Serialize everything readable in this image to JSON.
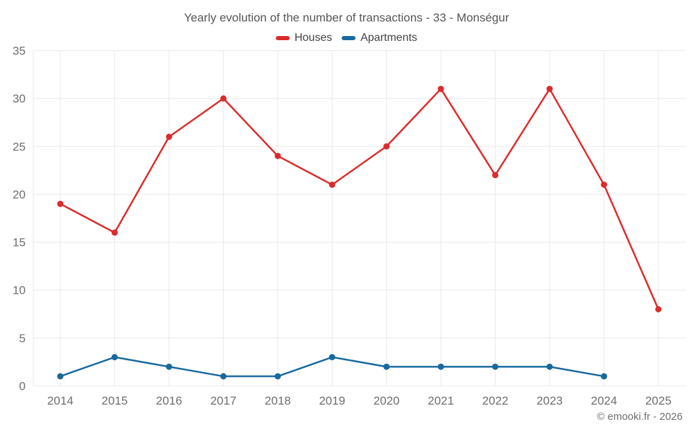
{
  "title": "Yearly evolution of the number of transactions - 33 - Monségur",
  "footer": "© emooki.fr - 2026",
  "colors": {
    "houses": "#dc2b2b",
    "apartments": "#17699e",
    "grid": "#e8e8e8",
    "tick_label": "#6e6e6e",
    "title_text": "#565656",
    "background": "#ffffff"
  },
  "chart_data": {
    "type": "line",
    "title": "Yearly evolution of the number of transactions - 33 - Monségur",
    "x": [
      "2014",
      "2015",
      "2016",
      "2017",
      "2018",
      "2019",
      "2020",
      "2021",
      "2022",
      "2023",
      "2024",
      "2025"
    ],
    "series": [
      {
        "name": "Houses",
        "color": "#dc2b2b",
        "values": [
          19,
          16,
          26,
          30,
          24,
          21,
          25,
          31,
          22,
          31,
          21,
          8
        ]
      },
      {
        "name": "Apartments",
        "color": "#17699e",
        "values": [
          1,
          3,
          2,
          1,
          1,
          3,
          2,
          2,
          2,
          2,
          1,
          null
        ]
      }
    ],
    "xlabel": "",
    "ylabel": "",
    "ylim": [
      0,
      35
    ],
    "y_ticks": [
      0,
      5,
      10,
      15,
      20,
      25,
      30,
      35
    ],
    "grid": true,
    "legend_position": "top"
  }
}
